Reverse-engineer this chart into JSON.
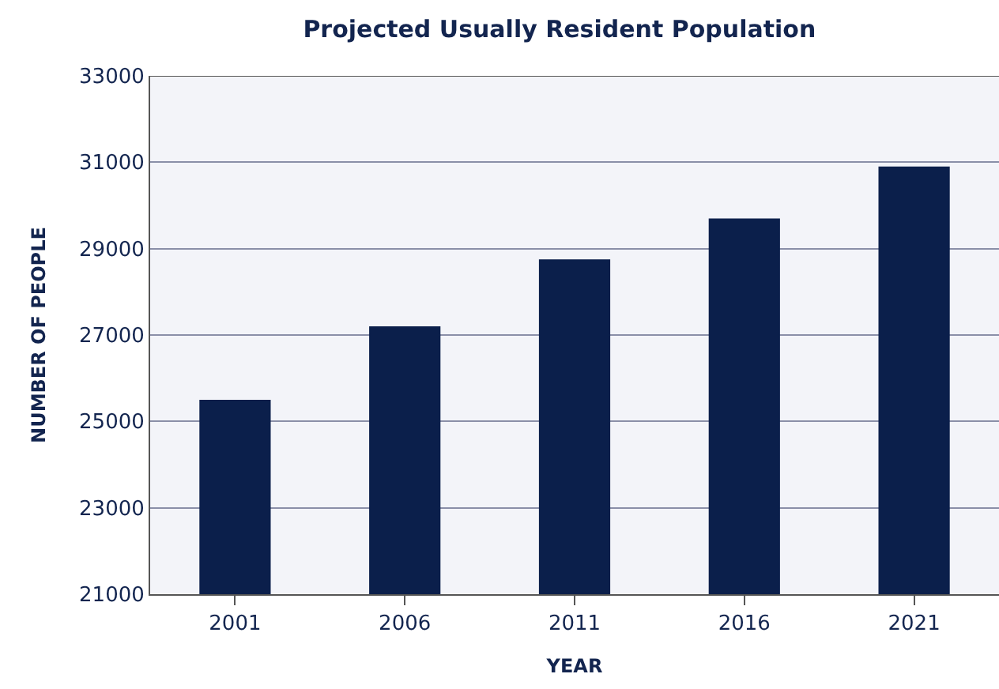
{
  "chart_data": {
    "type": "bar",
    "title": "Projected Usually Resident Population",
    "xlabel": "YEAR",
    "ylabel": "NUMBER OF PEOPLE",
    "categories": [
      "2001",
      "2006",
      "2011",
      "2016",
      "2021"
    ],
    "values": [
      25500,
      27200,
      28750,
      29700,
      30900
    ],
    "color": "#0b1f4b",
    "ylim": [
      21000,
      33000
    ],
    "yticks": [
      21000,
      23000,
      25000,
      27000,
      29000,
      31000,
      33000
    ],
    "grid": "y"
  }
}
